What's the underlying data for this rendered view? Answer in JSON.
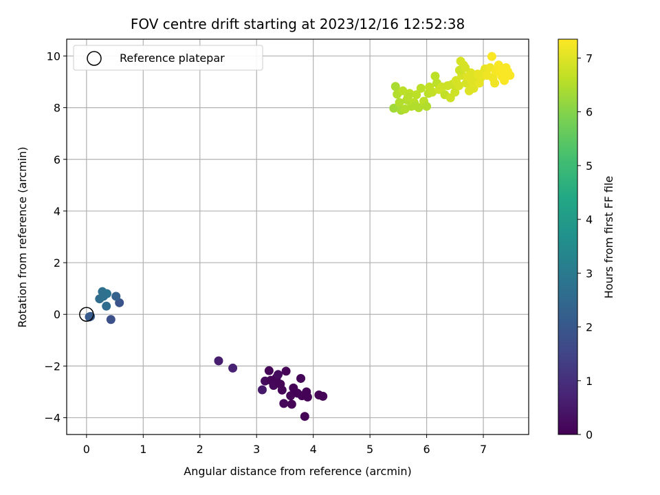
{
  "chart_data": {
    "type": "scatter",
    "title": "FOV centre drift starting at 2023/12/16 12:52:38",
    "xlabel": "Angular distance from reference (arcmin)",
    "ylabel": "Rotation from reference (arcmin)",
    "xlim": [
      -0.35,
      7.8
    ],
    "ylim": [
      -4.65,
      10.65
    ],
    "xticks": [
      0,
      1,
      2,
      3,
      4,
      5,
      6,
      7
    ],
    "yticks": [
      -4,
      -2,
      0,
      2,
      4,
      6,
      8,
      10
    ],
    "grid": true,
    "legend": {
      "placement": "top-left",
      "entries": [
        "Reference platepar"
      ]
    },
    "reference_point": {
      "x": 0,
      "y": 0
    },
    "colorbar": {
      "label": "Hours from first FF file",
      "colormap": "viridis",
      "range": [
        0,
        7.35
      ],
      "ticks": [
        0,
        1,
        2,
        3,
        4,
        5,
        6,
        7
      ]
    },
    "points": [
      [
        2.33,
        -1.8,
        0.6
      ],
      [
        2.58,
        -2.08,
        0.7
      ],
      [
        3.1,
        -2.92,
        0.5
      ],
      [
        3.15,
        -2.58,
        0.2
      ],
      [
        3.22,
        -2.18,
        0.1
      ],
      [
        3.25,
        -2.55,
        0.1
      ],
      [
        3.3,
        -2.75,
        0.15
      ],
      [
        3.35,
        -2.45,
        0.1
      ],
      [
        3.38,
        -2.33,
        0.2
      ],
      [
        3.42,
        -2.7,
        0.1
      ],
      [
        3.45,
        -2.93,
        0.1
      ],
      [
        3.48,
        -3.45,
        0.15
      ],
      [
        3.52,
        -2.2,
        0.1
      ],
      [
        3.6,
        -3.15,
        0.1
      ],
      [
        3.62,
        -3.48,
        0.1
      ],
      [
        3.65,
        -2.85,
        0.05
      ],
      [
        3.72,
        -3.05,
        0.05
      ],
      [
        3.78,
        -2.48,
        0.1
      ],
      [
        3.8,
        -3.15,
        0.05
      ],
      [
        3.85,
        -3.95,
        0.1
      ],
      [
        3.88,
        -3.0,
        0.05
      ],
      [
        3.9,
        -3.2,
        0.05
      ],
      [
        4.1,
        -3.12,
        0.05
      ],
      [
        4.17,
        -3.17,
        0.05
      ],
      [
        0.05,
        -0.1,
        2.0
      ],
      [
        0.07,
        -0.08,
        2.1
      ],
      [
        0.43,
        -0.2,
        1.8
      ],
      [
        0.58,
        0.45,
        1.9
      ],
      [
        0.52,
        0.7,
        2.3
      ],
      [
        0.35,
        0.32,
        2.6
      ],
      [
        0.23,
        0.6,
        2.6
      ],
      [
        0.28,
        0.88,
        2.7
      ],
      [
        0.36,
        0.8,
        2.8
      ],
      [
        0.3,
        0.7,
        2.7
      ],
      [
        5.42,
        7.98,
        6.3
      ],
      [
        5.45,
        8.82,
        6.4
      ],
      [
        5.48,
        8.52,
        6.5
      ],
      [
        5.52,
        8.2,
        6.5
      ],
      [
        5.55,
        7.9,
        6.4
      ],
      [
        5.58,
        8.65,
        6.6
      ],
      [
        5.62,
        7.95,
        6.5
      ],
      [
        5.65,
        8.3,
        6.5
      ],
      [
        5.7,
        8.55,
        6.6
      ],
      [
        5.73,
        8.05,
        6.5
      ],
      [
        5.78,
        8.2,
        6.6
      ],
      [
        5.82,
        8.5,
        6.6
      ],
      [
        5.86,
        8.0,
        6.5
      ],
      [
        5.9,
        8.75,
        6.6
      ],
      [
        5.95,
        8.25,
        6.6
      ],
      [
        6.0,
        8.05,
        6.5
      ],
      [
        6.03,
        8.55,
        6.6
      ],
      [
        6.05,
        8.8,
        6.7
      ],
      [
        6.1,
        8.6,
        6.7
      ],
      [
        6.15,
        9.22,
        6.6
      ],
      [
        6.18,
        8.95,
        6.6
      ],
      [
        6.22,
        8.7,
        6.8
      ],
      [
        6.27,
        8.8,
        6.8
      ],
      [
        6.32,
        8.5,
        6.7
      ],
      [
        6.37,
        8.85,
        6.8
      ],
      [
        6.42,
        8.38,
        6.8
      ],
      [
        6.45,
        8.9,
        6.8
      ],
      [
        6.5,
        8.6,
        6.8
      ],
      [
        6.52,
        9.05,
        6.9
      ],
      [
        6.57,
        8.85,
        6.9
      ],
      [
        6.6,
        9.8,
        6.9
      ],
      [
        6.62,
        9.25,
        6.9
      ],
      [
        6.65,
        9.65,
        6.9
      ],
      [
        6.7,
        8.95,
        6.9
      ],
      [
        6.72,
        9.2,
        7.0
      ],
      [
        6.75,
        8.65,
        7.0
      ],
      [
        6.78,
        9.35,
        7.0
      ],
      [
        6.8,
        9.0,
        7.0
      ],
      [
        6.83,
        8.75,
        7.0
      ],
      [
        6.86,
        9.15,
        7.0
      ],
      [
        6.9,
        9.3,
        7.1
      ],
      [
        6.93,
        8.95,
        7.1
      ],
      [
        6.97,
        9.2,
        7.1
      ],
      [
        7.0,
        9.35,
        7.1
      ],
      [
        7.03,
        9.5,
        7.1
      ],
      [
        7.07,
        9.25,
        7.2
      ],
      [
        7.12,
        9.55,
        7.2
      ],
      [
        7.15,
        9.98,
        7.3
      ],
      [
        7.17,
        9.15,
        7.2
      ],
      [
        7.2,
        8.95,
        7.2
      ],
      [
        7.22,
        9.4,
        7.25
      ],
      [
        7.27,
        9.65,
        7.3
      ],
      [
        7.3,
        9.35,
        7.3
      ],
      [
        7.33,
        9.2,
        7.3
      ],
      [
        7.37,
        9.05,
        7.3
      ],
      [
        7.4,
        9.55,
        7.3
      ],
      [
        7.43,
        9.4,
        7.3
      ],
      [
        7.47,
        9.25,
        7.3
      ],
      [
        6.58,
        9.45,
        6.8
      ],
      [
        6.68,
        9.55,
        6.9
      ],
      [
        5.67,
        8.4,
        6.55
      ],
      [
        5.8,
        8.08,
        6.5
      ]
    ]
  }
}
